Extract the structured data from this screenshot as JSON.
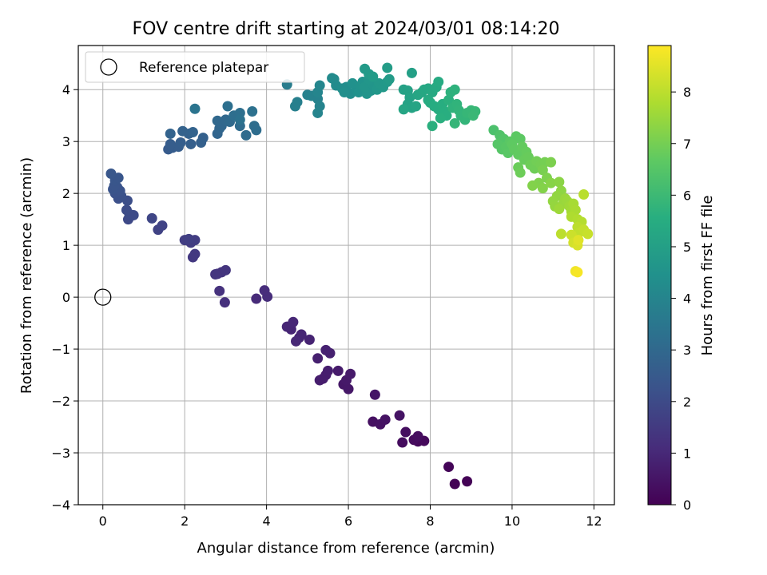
{
  "chart_data": {
    "type": "scatter",
    "title": "FOV centre drift starting at 2024/03/01 08:14:20",
    "xlabel": "Angular distance from reference (arcmin)",
    "ylabel": "Rotation from reference (arcmin)",
    "xlim": [
      -0.6,
      12.5
    ],
    "ylim": [
      -4.0,
      4.85
    ],
    "xticks": [
      "0",
      "2",
      "4",
      "6",
      "8",
      "10",
      "12"
    ],
    "yticks": [
      "−4",
      "−3",
      "−2",
      "−1",
      "0",
      "1",
      "2",
      "3",
      "4"
    ],
    "grid": true,
    "legend": {
      "position": "top-left",
      "entries": [
        "Reference platepar"
      ]
    },
    "reference_point": {
      "x": 0,
      "y": 0,
      "label": "Reference platepar"
    },
    "colorbar": {
      "label": "Hours from first FF file",
      "range": [
        0,
        8.9
      ],
      "ticks": [
        "0",
        "1",
        "2",
        "3",
        "4",
        "5",
        "6",
        "7",
        "8"
      ],
      "colormap": "viridis"
    },
    "points": [
      [
        8.6,
        -3.6,
        0.02
      ],
      [
        8.9,
        -3.55,
        0.05
      ],
      [
        8.45,
        -3.27,
        0.1
      ],
      [
        7.7,
        -2.78,
        0.15
      ],
      [
        7.85,
        -2.77,
        0.2
      ],
      [
        7.6,
        -2.75,
        0.25
      ],
      [
        7.32,
        -2.8,
        0.28
      ],
      [
        7.7,
        -2.68,
        0.3
      ],
      [
        7.4,
        -2.6,
        0.32
      ],
      [
        6.6,
        -2.4,
        0.38
      ],
      [
        6.78,
        -2.45,
        0.4
      ],
      [
        6.9,
        -2.36,
        0.42
      ],
      [
        7.25,
        -2.28,
        0.45
      ],
      [
        6.65,
        -1.88,
        0.5
      ],
      [
        5.88,
        -1.68,
        0.55
      ],
      [
        6.0,
        -1.77,
        0.58
      ],
      [
        5.95,
        -1.6,
        0.6
      ],
      [
        6.05,
        -1.48,
        0.62
      ],
      [
        5.75,
        -1.42,
        0.65
      ],
      [
        5.45,
        -1.5,
        0.68
      ],
      [
        5.3,
        -1.6,
        0.7
      ],
      [
        5.38,
        -1.57,
        0.72
      ],
      [
        5.5,
        -1.42,
        0.74
      ],
      [
        5.25,
        -1.18,
        0.78
      ],
      [
        5.55,
        -1.08,
        0.8
      ],
      [
        5.45,
        -1.02,
        0.82
      ],
      [
        5.05,
        -0.82,
        0.85
      ],
      [
        4.8,
        -0.78,
        0.88
      ],
      [
        4.85,
        -0.72,
        0.9
      ],
      [
        4.6,
        -0.62,
        0.92
      ],
      [
        4.5,
        -0.57,
        0.94
      ],
      [
        4.65,
        -0.48,
        0.96
      ],
      [
        4.72,
        -0.85,
        0.98
      ],
      [
        3.75,
        -0.03,
        1.05
      ],
      [
        4.02,
        0.01,
        1.1
      ],
      [
        3.95,
        0.13,
        1.12
      ],
      [
        2.98,
        -0.1,
        1.2
      ],
      [
        2.85,
        0.12,
        1.25
      ],
      [
        2.8,
        0.45,
        1.3
      ],
      [
        2.9,
        0.48,
        1.32
      ],
      [
        3.0,
        0.52,
        1.35
      ],
      [
        2.75,
        0.44,
        1.38
      ],
      [
        2.2,
        0.77,
        1.45
      ],
      [
        2.25,
        0.83,
        1.48
      ],
      [
        2.15,
        1.05,
        1.55
      ],
      [
        2.25,
        1.1,
        1.58
      ],
      [
        2.0,
        1.1,
        1.62
      ],
      [
        2.1,
        1.12,
        1.65
      ],
      [
        1.35,
        1.3,
        1.75
      ],
      [
        1.45,
        1.38,
        1.78
      ],
      [
        1.2,
        1.52,
        1.85
      ],
      [
        0.62,
        1.5,
        1.95
      ],
      [
        0.65,
        1.6,
        2.0
      ],
      [
        0.75,
        1.58,
        2.02
      ],
      [
        0.58,
        1.68,
        2.05
      ],
      [
        0.6,
        1.86,
        2.1
      ],
      [
        0.38,
        1.9,
        2.15
      ],
      [
        0.45,
        1.95,
        2.18
      ],
      [
        0.3,
        2.0,
        2.22
      ],
      [
        0.42,
        2.05,
        2.25
      ],
      [
        0.25,
        2.08,
        2.28
      ],
      [
        0.35,
        2.12,
        2.3
      ],
      [
        0.28,
        2.15,
        2.32
      ],
      [
        0.3,
        2.25,
        2.35
      ],
      [
        0.38,
        2.3,
        2.38
      ],
      [
        0.2,
        2.38,
        2.4
      ],
      [
        1.6,
        2.85,
        2.55
      ],
      [
        1.7,
        2.88,
        2.58
      ],
      [
        1.85,
        2.9,
        2.6
      ],
      [
        1.65,
        2.95,
        2.62
      ],
      [
        1.9,
        2.98,
        2.64
      ],
      [
        2.15,
        2.95,
        2.68
      ],
      [
        2.4,
        2.98,
        2.7
      ],
      [
        2.45,
        3.07,
        2.72
      ],
      [
        2.1,
        3.15,
        2.75
      ],
      [
        1.95,
        3.2,
        2.78
      ],
      [
        2.2,
        3.18,
        2.8
      ],
      [
        1.65,
        3.15,
        2.82
      ],
      [
        2.8,
        3.15,
        2.9
      ],
      [
        2.85,
        3.25,
        2.92
      ],
      [
        2.9,
        3.3,
        2.95
      ],
      [
        2.8,
        3.4,
        2.98
      ],
      [
        3.0,
        3.42,
        3.0
      ],
      [
        3.1,
        3.38,
        3.05
      ],
      [
        3.35,
        3.3,
        3.08
      ],
      [
        3.5,
        3.12,
        3.1
      ],
      [
        3.7,
        3.3,
        3.15
      ],
      [
        3.75,
        3.22,
        3.18
      ],
      [
        3.2,
        3.5,
        3.2
      ],
      [
        3.35,
        3.55,
        3.22
      ],
      [
        3.05,
        3.68,
        3.25
      ],
      [
        3.65,
        3.58,
        3.3
      ],
      [
        3.35,
        3.42,
        3.32
      ],
      [
        2.25,
        3.63,
        3.4
      ],
      [
        4.5,
        4.1,
        3.7
      ],
      [
        4.7,
        3.68,
        3.8
      ],
      [
        4.75,
        3.76,
        3.82
      ],
      [
        5.0,
        3.9,
        3.88
      ],
      [
        5.1,
        3.88,
        3.9
      ],
      [
        5.25,
        3.82,
        3.92
      ],
      [
        5.3,
        3.68,
        3.95
      ],
      [
        5.25,
        3.55,
        3.98
      ],
      [
        5.25,
        3.95,
        4.02
      ],
      [
        5.3,
        4.08,
        4.05
      ],
      [
        5.6,
        4.22,
        4.2
      ],
      [
        5.7,
        4.08,
        4.22
      ],
      [
        5.65,
        4.2,
        4.25
      ],
      [
        5.85,
        4.02,
        4.3
      ],
      [
        5.95,
        4.05,
        4.32
      ],
      [
        6.05,
        3.92,
        4.35
      ],
      [
        5.9,
        3.95,
        4.38
      ],
      [
        6.2,
        4.0,
        4.4
      ],
      [
        6.1,
        4.12,
        4.45
      ],
      [
        6.25,
        3.95,
        4.48
      ],
      [
        6.3,
        4.08,
        4.5
      ],
      [
        6.35,
        4.15,
        4.52
      ],
      [
        6.45,
        3.92,
        4.55
      ],
      [
        6.55,
        3.98,
        4.58
      ],
      [
        6.4,
        4.05,
        4.6
      ],
      [
        6.6,
        4.1,
        4.62
      ],
      [
        6.5,
        4.2,
        4.65
      ],
      [
        6.7,
        4.0,
        4.68
      ],
      [
        6.75,
        4.12,
        4.7
      ],
      [
        6.85,
        4.05,
        4.72
      ],
      [
        6.95,
        4.15,
        4.75
      ],
      [
        6.5,
        4.3,
        4.78
      ],
      [
        6.4,
        4.4,
        4.8
      ],
      [
        6.6,
        4.25,
        4.82
      ],
      [
        7.0,
        4.2,
        4.85
      ],
      [
        6.95,
        4.42,
        4.88
      ],
      [
        7.55,
        4.32,
        5.0
      ],
      [
        7.35,
        4.0,
        5.05
      ],
      [
        7.45,
        3.98,
        5.08
      ],
      [
        7.5,
        3.85,
        5.1
      ],
      [
        7.45,
        3.72,
        5.12
      ],
      [
        7.55,
        3.65,
        5.15
      ],
      [
        7.65,
        3.68,
        5.18
      ],
      [
        7.35,
        3.62,
        5.2
      ],
      [
        7.7,
        3.9,
        5.22
      ],
      [
        7.8,
        3.95,
        5.25
      ],
      [
        7.85,
        4.0,
        5.28
      ],
      [
        7.95,
        4.02,
        5.3
      ],
      [
        8.05,
        3.95,
        5.35
      ],
      [
        8.15,
        4.05,
        5.38
      ],
      [
        8.2,
        4.15,
        5.4
      ],
      [
        7.95,
        3.8,
        5.42
      ],
      [
        8.0,
        3.75,
        5.45
      ],
      [
        8.1,
        3.68,
        5.48
      ],
      [
        8.2,
        3.62,
        5.5
      ],
      [
        8.3,
        3.72,
        5.52
      ],
      [
        8.35,
        3.58,
        5.55
      ],
      [
        8.4,
        3.5,
        5.58
      ],
      [
        8.25,
        3.45,
        5.6
      ],
      [
        8.05,
        3.3,
        5.62
      ],
      [
        8.45,
        3.8,
        5.65
      ],
      [
        8.5,
        3.95,
        5.68
      ],
      [
        8.6,
        4.0,
        5.7
      ],
      [
        8.55,
        3.65,
        5.72
      ],
      [
        8.65,
        3.72,
        5.75
      ],
      [
        8.7,
        3.6,
        5.78
      ],
      [
        8.75,
        3.5,
        5.8
      ],
      [
        8.85,
        3.42,
        5.82
      ],
      [
        8.6,
        3.35,
        5.85
      ],
      [
        8.9,
        3.55,
        5.88
      ],
      [
        9.0,
        3.6,
        5.9
      ],
      [
        9.1,
        3.58,
        5.92
      ],
      [
        9.05,
        3.5,
        5.95
      ],
      [
        9.55,
        3.22,
        6.3
      ],
      [
        9.7,
        3.12,
        6.4
      ],
      [
        9.8,
        3.05,
        6.45
      ],
      [
        9.65,
        2.95,
        6.5
      ],
      [
        9.75,
        2.85,
        6.52
      ],
      [
        9.85,
        2.9,
        6.55
      ],
      [
        9.9,
        2.78,
        6.58
      ],
      [
        9.95,
        3.0,
        6.6
      ],
      [
        10.1,
        3.1,
        6.62
      ],
      [
        10.2,
        3.05,
        6.65
      ],
      [
        10.0,
        2.95,
        6.68
      ],
      [
        10.05,
        2.85,
        6.7
      ],
      [
        10.15,
        2.75,
        6.72
      ],
      [
        10.25,
        2.9,
        6.75
      ],
      [
        10.35,
        2.8,
        6.78
      ],
      [
        10.3,
        2.65,
        6.8
      ],
      [
        10.4,
        2.7,
        6.82
      ],
      [
        10.15,
        2.5,
        6.85
      ],
      [
        10.2,
        2.4,
        6.88
      ],
      [
        10.45,
        2.55,
        6.9
      ],
      [
        10.55,
        2.48,
        6.92
      ],
      [
        10.6,
        2.62,
        6.95
      ],
      [
        10.7,
        2.55,
        6.98
      ],
      [
        10.8,
        2.6,
        7.0
      ],
      [
        10.75,
        2.45,
        7.05
      ],
      [
        10.95,
        2.6,
        7.1
      ],
      [
        10.85,
        2.3,
        7.12
      ],
      [
        10.65,
        2.2,
        7.15
      ],
      [
        10.5,
        2.15,
        7.18
      ],
      [
        10.75,
        2.1,
        7.2
      ],
      [
        10.95,
        2.2,
        7.25
      ],
      [
        11.15,
        2.22,
        7.3
      ],
      [
        11.2,
        2.05,
        7.35
      ],
      [
        11.1,
        1.95,
        7.4
      ],
      [
        11.0,
        1.85,
        7.42
      ],
      [
        11.05,
        1.75,
        7.45
      ],
      [
        11.25,
        1.8,
        7.5
      ],
      [
        11.3,
        1.9,
        7.52
      ],
      [
        11.35,
        1.85,
        7.55
      ],
      [
        11.15,
        1.7,
        7.58
      ],
      [
        11.4,
        1.75,
        7.6
      ],
      [
        11.45,
        1.65,
        7.65
      ],
      [
        11.5,
        1.8,
        7.7
      ],
      [
        11.55,
        1.68,
        7.75
      ],
      [
        11.45,
        1.55,
        7.8
      ],
      [
        11.6,
        1.5,
        7.85
      ],
      [
        11.7,
        1.45,
        7.9
      ],
      [
        11.75,
        1.98,
        7.95
      ],
      [
        11.6,
        1.35,
        8.0
      ],
      [
        11.65,
        1.25,
        8.05
      ],
      [
        11.75,
        1.3,
        8.1
      ],
      [
        11.85,
        1.22,
        8.15
      ],
      [
        11.45,
        1.2,
        8.2
      ],
      [
        11.5,
        1.05,
        8.3
      ],
      [
        11.6,
        1.0,
        8.4
      ],
      [
        11.55,
        0.5,
        8.7
      ],
      [
        11.6,
        0.48,
        8.8
      ],
      [
        11.2,
        1.22,
        8.0
      ],
      [
        11.62,
        1.1,
        8.5
      ]
    ]
  }
}
